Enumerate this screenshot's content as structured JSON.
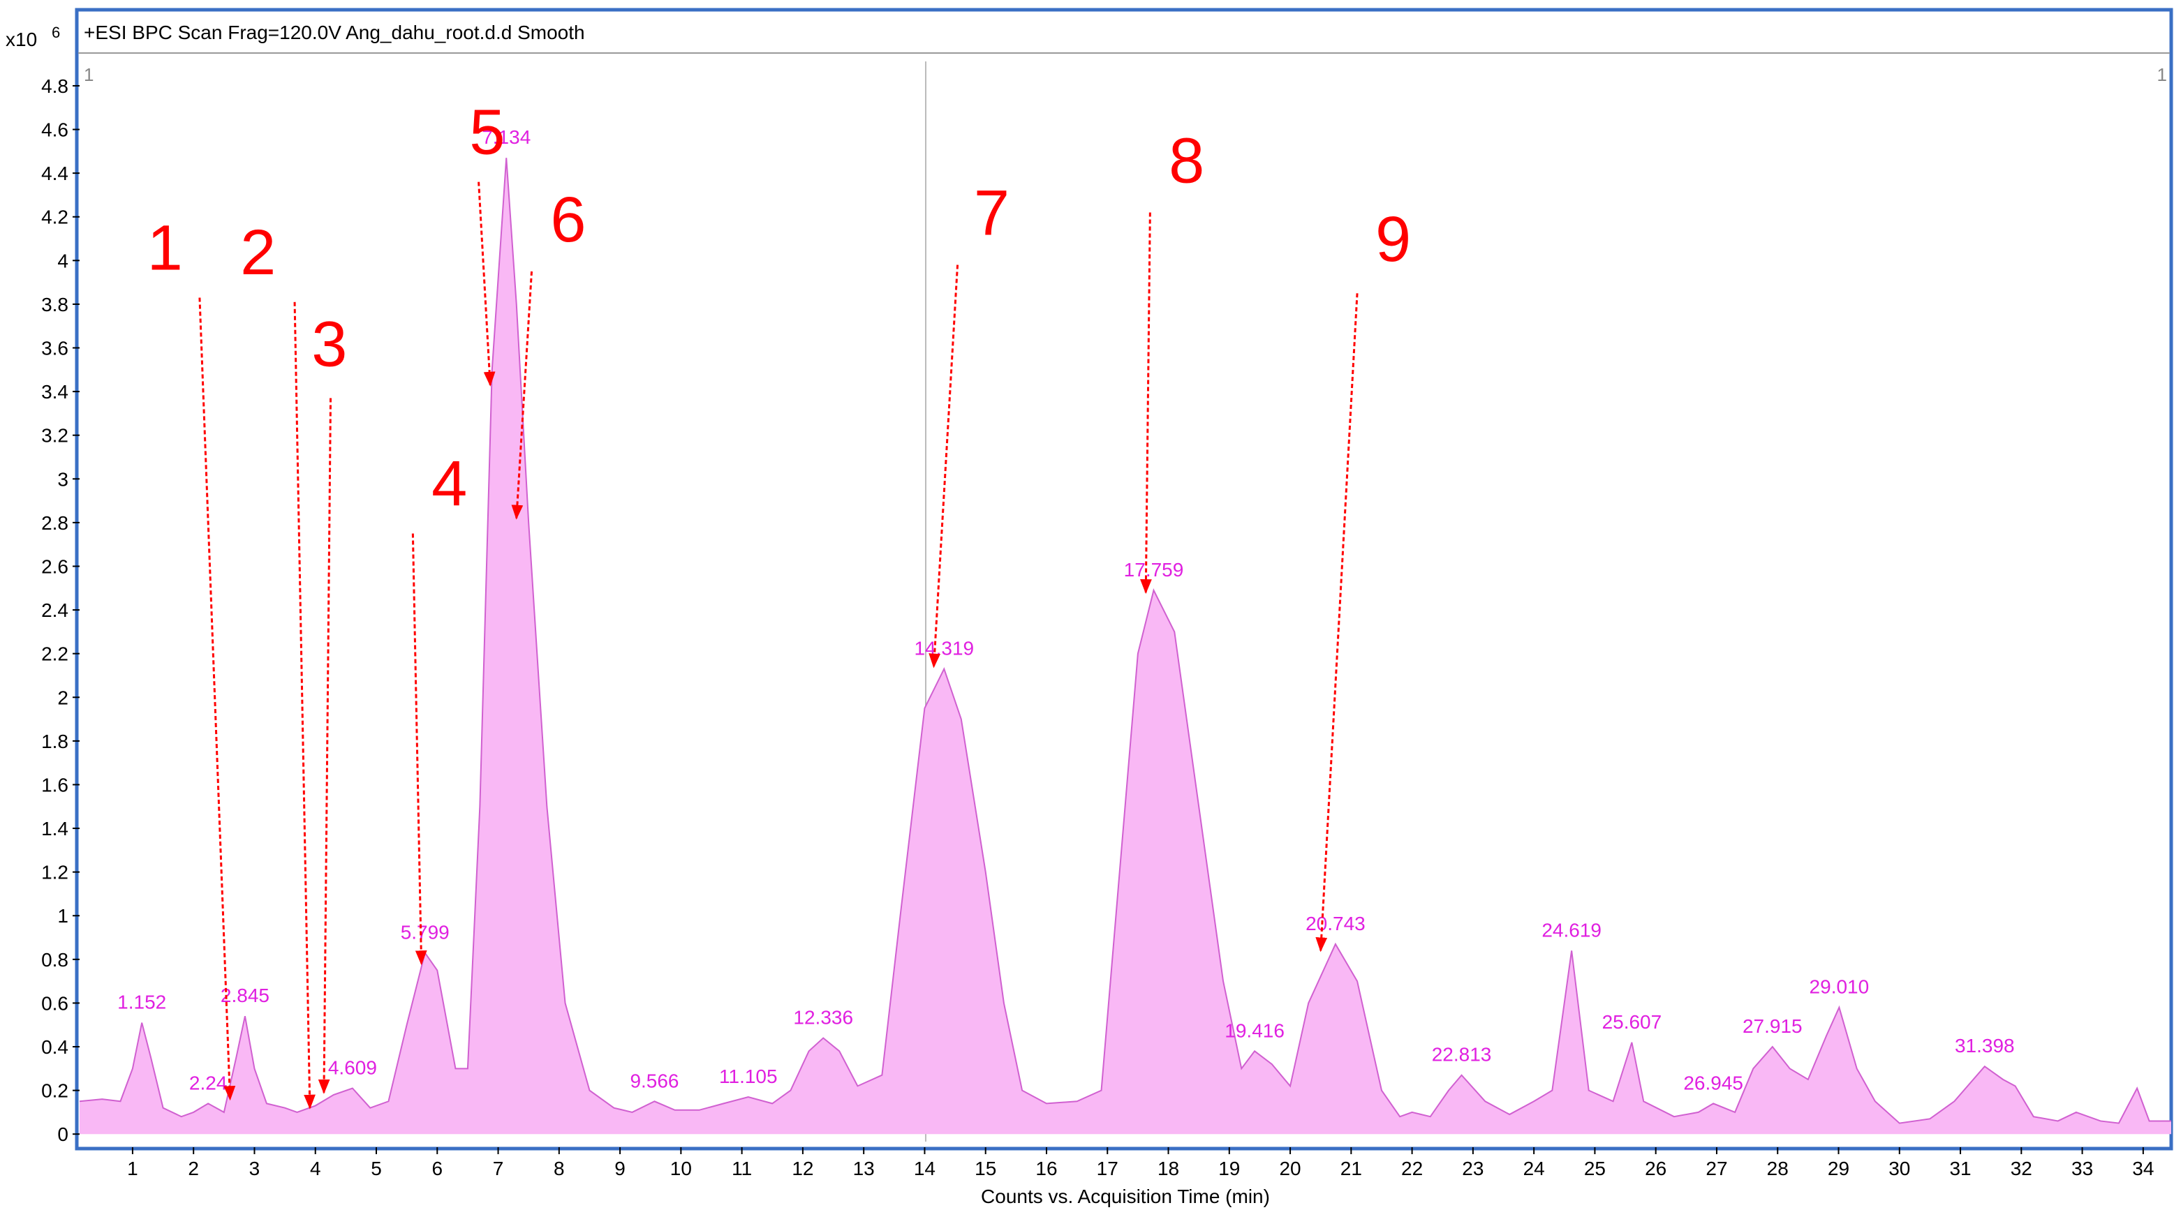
{
  "chart_data": {
    "type": "area",
    "title": "+ESI BPC Scan Frag=120.0V Ang_dahu_root.d.d  Smooth",
    "y_multiplier": "x10",
    "y_exponent": "6",
    "x_label": "Counts vs. Acquisition Time (min)",
    "corner_marks": [
      "1",
      "1"
    ],
    "color": "#f9b8f5",
    "line_color": "#d060d0",
    "xlim": [
      0.13,
      34.46
    ],
    "ylim": [
      -0.06,
      4.95
    ],
    "xticks": [
      1,
      2,
      3,
      4,
      5,
      6,
      7,
      8,
      9,
      10,
      11,
      12,
      13,
      14,
      15,
      16,
      17,
      18,
      19,
      20,
      21,
      22,
      23,
      24,
      25,
      26,
      27,
      28,
      29,
      30,
      31,
      32,
      33,
      34
    ],
    "yticks": [
      0,
      0.2,
      0.4,
      0.6,
      0.8,
      1,
      1.2,
      1.4,
      1.6,
      1.8,
      2,
      2.2,
      2.4,
      2.6,
      2.8,
      3,
      3.2,
      3.4,
      3.6,
      3.8,
      4,
      4.2,
      4.4,
      4.6,
      4.8
    ],
    "x": [
      0.13,
      0.5,
      0.8,
      1.0,
      1.152,
      1.3,
      1.5,
      1.8,
      2.0,
      2.24,
      2.5,
      2.7,
      2.845,
      3.0,
      3.2,
      3.5,
      3.7,
      4.0,
      4.3,
      4.609,
      4.9,
      5.2,
      5.5,
      5.799,
      6.0,
      6.3,
      6.5,
      6.7,
      6.9,
      7.134,
      7.3,
      7.5,
      7.8,
      8.1,
      8.5,
      8.9,
      9.2,
      9.566,
      9.9,
      10.3,
      10.7,
      11.105,
      11.5,
      11.8,
      12.1,
      12.336,
      12.6,
      12.9,
      13.3,
      13.6,
      14.0,
      14.319,
      14.6,
      15.0,
      15.3,
      15.6,
      16.0,
      16.5,
      16.9,
      17.2,
      17.5,
      17.759,
      18.1,
      18.5,
      18.9,
      19.2,
      19.416,
      19.7,
      20.0,
      20.3,
      20.743,
      21.1,
      21.5,
      21.8,
      22.0,
      22.3,
      22.6,
      22.813,
      23.2,
      23.6,
      24.0,
      24.3,
      24.619,
      24.9,
      25.3,
      25.607,
      25.8,
      26.3,
      26.7,
      26.945,
      27.3,
      27.6,
      27.915,
      28.2,
      28.5,
      28.8,
      29.01,
      29.3,
      29.6,
      30.0,
      30.5,
      30.9,
      31.398,
      31.7,
      31.9,
      32.2,
      32.6,
      32.9,
      33.3,
      33.6,
      33.9,
      34.1,
      34.46
    ],
    "values": [
      0.15,
      0.16,
      0.15,
      0.3,
      0.51,
      0.35,
      0.12,
      0.08,
      0.1,
      0.14,
      0.1,
      0.35,
      0.54,
      0.3,
      0.14,
      0.12,
      0.1,
      0.13,
      0.18,
      0.21,
      0.12,
      0.15,
      0.5,
      0.83,
      0.75,
      0.3,
      0.3,
      1.5,
      3.5,
      4.47,
      3.8,
      2.8,
      1.5,
      0.6,
      0.2,
      0.12,
      0.1,
      0.15,
      0.11,
      0.11,
      0.14,
      0.17,
      0.14,
      0.2,
      0.38,
      0.44,
      0.38,
      0.22,
      0.27,
      1.0,
      1.95,
      2.13,
      1.9,
      1.2,
      0.6,
      0.2,
      0.14,
      0.15,
      0.2,
      1.2,
      2.2,
      2.49,
      2.3,
      1.5,
      0.7,
      0.3,
      0.38,
      0.32,
      0.22,
      0.6,
      0.87,
      0.7,
      0.2,
      0.08,
      0.1,
      0.08,
      0.2,
      0.27,
      0.15,
      0.09,
      0.15,
      0.2,
      0.84,
      0.2,
      0.15,
      0.42,
      0.15,
      0.08,
      0.1,
      0.14,
      0.1,
      0.3,
      0.4,
      0.3,
      0.25,
      0.45,
      0.58,
      0.3,
      0.15,
      0.05,
      0.07,
      0.15,
      0.31,
      0.25,
      0.22,
      0.08,
      0.06,
      0.1,
      0.06,
      0.05,
      0.21,
      0.06,
      0.06
    ],
    "peak_labels": [
      {
        "text": "1.152",
        "x": 1.152,
        "y": 0.51
      },
      {
        "text": "2.24",
        "x": 2.24,
        "y": 0.14
      },
      {
        "text": "2.845",
        "x": 2.845,
        "y": 0.54
      },
      {
        "text": "4.609",
        "x": 4.609,
        "y": 0.21
      },
      {
        "text": "5.799",
        "x": 5.799,
        "y": 0.83
      },
      {
        "text": "7.134",
        "x": 7.134,
        "y": 4.47
      },
      {
        "text": "9.566",
        "x": 9.566,
        "y": 0.15
      },
      {
        "text": "11.105",
        "x": 11.105,
        "y": 0.17
      },
      {
        "text": "12.336",
        "x": 12.336,
        "y": 0.44
      },
      {
        "text": "14.319",
        "x": 14.319,
        "y": 2.13
      },
      {
        "text": "17.759",
        "x": 17.759,
        "y": 2.49
      },
      {
        "text": "19.416",
        "x": 19.416,
        "y": 0.38
      },
      {
        "text": "20.743",
        "x": 20.743,
        "y": 0.87
      },
      {
        "text": "22.813",
        "x": 22.813,
        "y": 0.27
      },
      {
        "text": "24.619",
        "x": 24.619,
        "y": 0.84
      },
      {
        "text": "25.607",
        "x": 25.607,
        "y": 0.42
      },
      {
        "text": "26.945",
        "x": 26.945,
        "y": 0.14
      },
      {
        "text": "27.915",
        "x": 27.915,
        "y": 0.4
      },
      {
        "text": "29.010",
        "x": 29.01,
        "y": 0.58
      },
      {
        "text": "31.398",
        "x": 31.398,
        "y": 0.31
      }
    ],
    "annotations": [
      {
        "text": "1",
        "x": 1.53,
        "y": 4.06,
        "arrow": {
          "x": [
            2.1,
            2.6
          ],
          "y": [
            3.83,
            0.16
          ]
        }
      },
      {
        "text": "2",
        "x": 3.06,
        "y": 4.04,
        "arrow": {
          "x": [
            3.66,
            3.91
          ],
          "y": [
            3.81,
            0.12
          ]
        }
      },
      {
        "text": "3",
        "x": 4.23,
        "y": 3.62,
        "arrow": {
          "x": [
            4.25,
            4.14
          ],
          "y": [
            3.37,
            0.19
          ]
        }
      },
      {
        "text": "4",
        "x": 6.2,
        "y": 2.98,
        "arrow": {
          "x": [
            5.6,
            5.74
          ],
          "y": [
            2.75,
            0.78
          ]
        }
      },
      {
        "text": "5",
        "x": 6.82,
        "y": 4.59,
        "arrow": {
          "x": [
            6.68,
            6.87
          ],
          "y": [
            4.36,
            3.43
          ]
        }
      },
      {
        "text": "6",
        "x": 8.15,
        "y": 4.19,
        "arrow": {
          "x": [
            7.55,
            7.3
          ],
          "y": [
            3.95,
            2.82
          ]
        }
      },
      {
        "text": "7",
        "x": 15.1,
        "y": 4.22,
        "arrow": {
          "x": [
            14.54,
            14.15
          ],
          "y": [
            3.98,
            2.14
          ]
        }
      },
      {
        "text": "8",
        "x": 18.3,
        "y": 4.46,
        "arrow": {
          "x": [
            17.7,
            17.63
          ],
          "y": [
            4.22,
            2.48
          ]
        }
      },
      {
        "text": "9",
        "x": 21.69,
        "y": 4.1,
        "arrow": {
          "x": [
            21.1,
            20.5
          ],
          "y": [
            3.85,
            0.84
          ]
        }
      }
    ],
    "annotation_color": "#ff0000",
    "peak_label_color": "#e020e0"
  }
}
